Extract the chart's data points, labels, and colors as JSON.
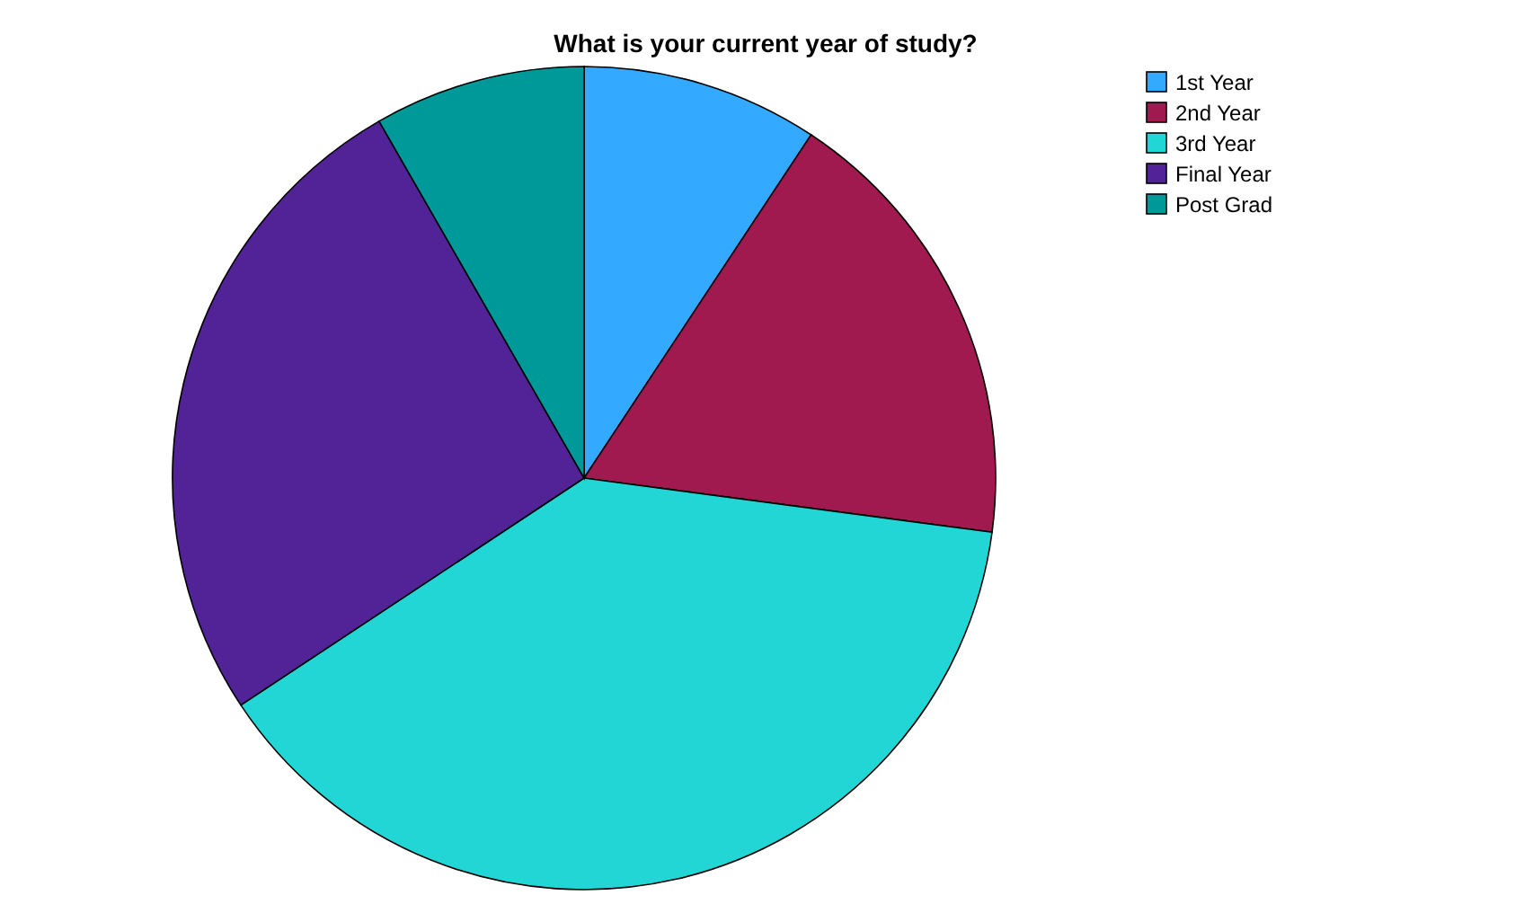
{
  "chart_data": {
    "type": "pie",
    "title": "What is your current year of study?",
    "categories": [
      "1st Year",
      "2nd Year",
      "3rd Year",
      "Final Year",
      "Post Grad"
    ],
    "values": [
      9.3,
      17.8,
      38.6,
      26.0,
      8.3
    ],
    "colors": [
      "#33aaff",
      "#a01a50",
      "#22d6d6",
      "#512396",
      "#009999"
    ],
    "legend": "top right"
  }
}
